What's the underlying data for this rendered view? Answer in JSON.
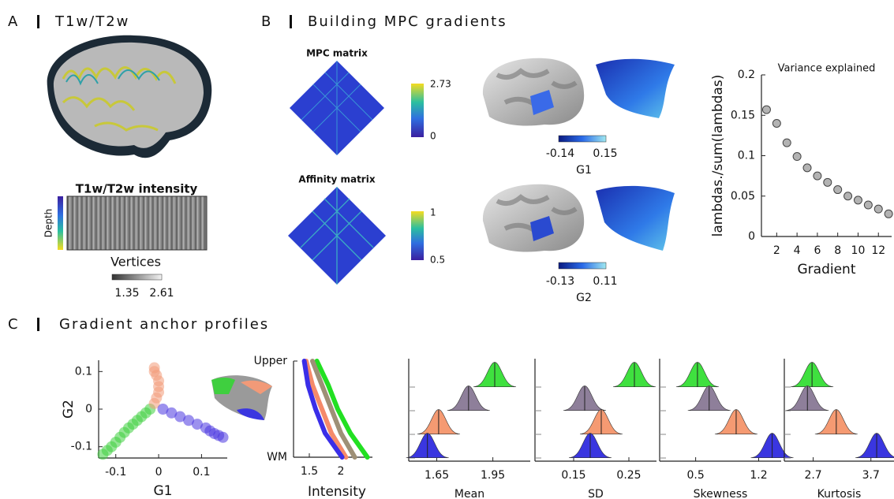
{
  "panel_a": {
    "letter": "A",
    "title": "T1w/T2w",
    "heatmap_title": "T1w/T2w intensity",
    "depth_label": "Depth",
    "x_label": "Vertices",
    "colorbar": [
      1.35,
      2.61
    ]
  },
  "panel_b": {
    "letter": "B",
    "title": "Building MPC gradients",
    "mpc_title": "MPC matrix",
    "mpc_colorbar": [
      0,
      2.73
    ],
    "affinity_title": "Affinity matrix",
    "affinity_colorbar": [
      0.5,
      1
    ],
    "g1_colorbar": [
      -0.14,
      0.15
    ],
    "g1_label": "G1",
    "g2_colorbar": [
      -0.13,
      0.11
    ],
    "g2_label": "G2"
  },
  "panel_c": {
    "letter": "C",
    "title": "Gradient anchor profiles"
  },
  "chart_data": [
    {
      "type": "scatter",
      "title": "Variance explained",
      "x": [
        1,
        2,
        3,
        4,
        5,
        6,
        7,
        8,
        9,
        10,
        11,
        12,
        13
      ],
      "values": [
        0.157,
        0.14,
        0.116,
        0.099,
        0.085,
        0.075,
        0.067,
        0.058,
        0.05,
        0.045,
        0.039,
        0.034,
        0.028
      ],
      "color": "#b3b3b3",
      "xlim": [
        0.5,
        13.3
      ],
      "ylim": [
        0,
        0.2
      ],
      "xticks": [
        2,
        4,
        6,
        8,
        10,
        12
      ],
      "yticks": [
        0,
        0.05,
        0.1,
        0.15,
        0.2
      ],
      "xlabel": "Gradient",
      "ylabel": "lambdas./sum(lambdas)"
    },
    {
      "type": "scatter",
      "series": [
        {
          "color": "#3fcf3f",
          "x": [
            -0.13,
            -0.12,
            -0.11,
            -0.1,
            -0.09,
            -0.08,
            -0.07,
            -0.06,
            -0.05,
            -0.04,
            -0.03,
            -0.02
          ],
          "values": [
            -0.12,
            -0.11,
            -0.1,
            -0.088,
            -0.075,
            -0.062,
            -0.05,
            -0.04,
            -0.03,
            -0.02,
            -0.01,
            0
          ]
        },
        {
          "color": "#f29a78",
          "x": [
            -0.01,
            -0.01,
            -0.005,
            0,
            0,
            0,
            -0.005,
            -0.01
          ],
          "values": [
            0.11,
            0.1,
            0.09,
            0.075,
            0.06,
            0.045,
            0.03,
            0.015
          ]
        },
        {
          "color": "#4a36e0",
          "x": [
            0.01,
            0.03,
            0.05,
            0.07,
            0.09,
            0.11,
            0.12,
            0.13,
            0.14,
            0.15
          ],
          "values": [
            0,
            -0.01,
            -0.02,
            -0.03,
            -0.04,
            -0.05,
            -0.058,
            -0.065,
            -0.07,
            -0.075
          ]
        }
      ],
      "xlim": [
        -0.14,
        0.16
      ],
      "ylim": [
        -0.13,
        0.13
      ],
      "xticks": [
        -0.1,
        0,
        0.1
      ],
      "yticks": [
        -0.1,
        0,
        0.1
      ],
      "xlabel": "G1",
      "ylabel": "G2"
    },
    {
      "type": "line",
      "series": [
        {
          "color": "#22e022",
          "values": [
            1.62,
            1.8,
            1.95,
            2.15,
            2.42
          ],
          "y": [
            1,
            0.75,
            0.5,
            0.25,
            0
          ]
        },
        {
          "color": "#9e9077",
          "values": [
            1.55,
            1.7,
            1.85,
            2.0,
            2.22
          ],
          "y": [
            1,
            0.75,
            0.5,
            0.25,
            0
          ]
        },
        {
          "color": "#f58a6a",
          "values": [
            1.45,
            1.55,
            1.7,
            1.85,
            2.08
          ],
          "y": [
            1,
            0.75,
            0.5,
            0.25,
            0
          ]
        },
        {
          "color": "#3a2ee8",
          "values": [
            1.42,
            1.48,
            1.6,
            1.75,
            2.02
          ],
          "y": [
            1,
            0.75,
            0.5,
            0.25,
            0
          ]
        }
      ],
      "xlim": [
        1.25,
        2.5
      ],
      "xticks": [
        1.5,
        2
      ],
      "ylim": [
        0,
        1
      ],
      "yticks": [
        {
          "value": 1,
          "label": "Upper"
        },
        {
          "value": 0,
          "label": "WM"
        }
      ],
      "xlabel": "Intensity"
    },
    {
      "type": "ridge",
      "xlabel": "Mean",
      "xlim": [
        1.5,
        2.15
      ],
      "xticks": [
        1.65,
        1.95
      ],
      "values": [
        1.96,
        1.82,
        1.66,
        1.6
      ],
      "colors": [
        "#3fe03f",
        "#8e7f9a",
        "#f59a72",
        "#3a36e0"
      ]
    },
    {
      "type": "ridge",
      "xlabel": "SD",
      "xlim": [
        0.08,
        0.3
      ],
      "xticks": [
        0.15,
        0.25
      ],
      "values": [
        0.26,
        0.17,
        0.2,
        0.18
      ],
      "colors": [
        "#3fe03f",
        "#8e7f9a",
        "#f59a72",
        "#3a36e0"
      ]
    },
    {
      "type": "ridge",
      "xlabel": "Skewness",
      "xlim": [
        0.1,
        1.45
      ],
      "xticks": [
        0.5,
        1.2
      ],
      "values": [
        0.52,
        0.65,
        0.95,
        1.35
      ],
      "colors": [
        "#3fe03f",
        "#8e7f9a",
        "#f59a72",
        "#3a36e0"
      ]
    },
    {
      "type": "ridge",
      "xlabel": "Kurtosis",
      "xlim": [
        2.2,
        4.1
      ],
      "xticks": [
        2.7,
        3.7
      ],
      "values": [
        2.68,
        2.6,
        3.1,
        3.8
      ],
      "colors": [
        "#3fe03f",
        "#8e7f9a",
        "#f59a72",
        "#3a36e0"
      ]
    }
  ]
}
